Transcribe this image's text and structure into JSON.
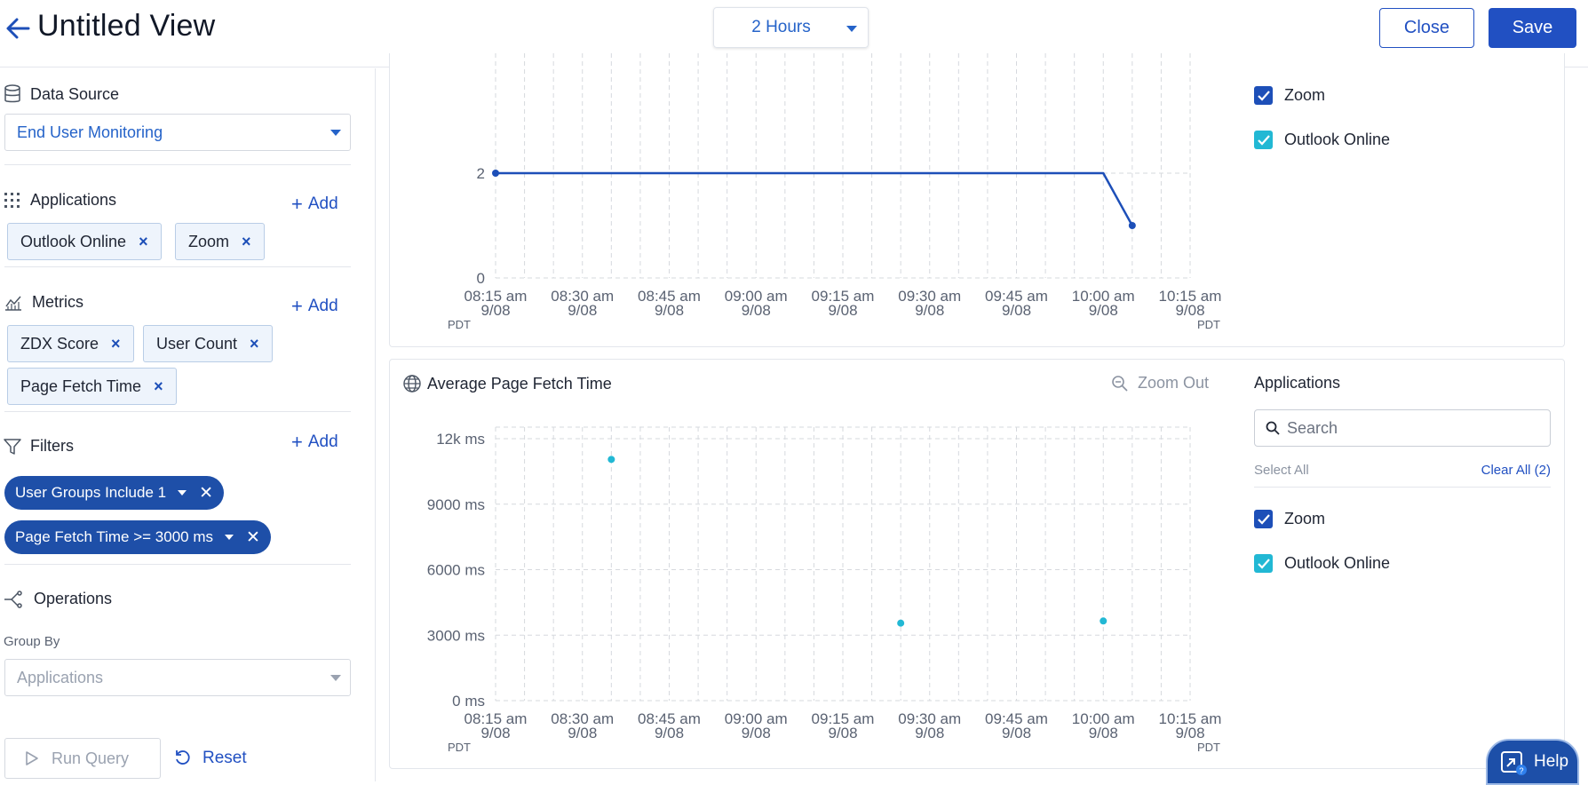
{
  "header": {
    "title": "Untitled View",
    "time_range": "2 Hours",
    "close_label": "Close",
    "save_label": "Save"
  },
  "sidebar": {
    "data_source": {
      "label": "Data Source",
      "value": "End User Monitoring"
    },
    "applications": {
      "label": "Applications",
      "add_label": "Add",
      "chips": [
        "Outlook Online",
        "Zoom"
      ]
    },
    "metrics": {
      "label": "Metrics",
      "add_label": "Add",
      "chips": [
        "ZDX Score",
        "User Count",
        "Page Fetch Time"
      ]
    },
    "filters": {
      "label": "Filters",
      "add_label": "Add",
      "pills": [
        "User Groups Include 1",
        "Page Fetch Time >= 3000 ms"
      ]
    },
    "operations": {
      "label": "Operations",
      "group_by_label": "Group By",
      "group_by_placeholder": "Applications"
    },
    "run_query_label": "Run Query",
    "reset_label": "Reset"
  },
  "panel1": {
    "legend": [
      {
        "name": "Zoom",
        "color": "#1d4fb8",
        "checked": true
      },
      {
        "name": "Outlook Online",
        "color": "#22b8d4",
        "checked": true
      }
    ]
  },
  "panel2": {
    "title": "Average Page Fetch Time",
    "zoom_out_label": "Zoom Out",
    "legend_title": "Applications",
    "search_placeholder": "Search",
    "select_all_label": "Select All",
    "clear_all_label": "Clear All (2)",
    "legend": [
      {
        "name": "Zoom",
        "color": "#1d4fb8",
        "checked": true
      },
      {
        "name": "Outlook Online",
        "color": "#22b8d4",
        "checked": true
      }
    ]
  },
  "help_label": "Help",
  "chart_data": [
    {
      "type": "line",
      "title": "",
      "x_ticks": [
        "08:15 am",
        "08:30 am",
        "08:45 am",
        "09:00 am",
        "09:15 am",
        "09:30 am",
        "09:45 am",
        "10:00 am",
        "10:15 am"
      ],
      "x_tick_dates": [
        "9/08",
        "9/08",
        "9/08",
        "9/08",
        "9/08",
        "9/08",
        "9/08",
        "9/08",
        "9/08"
      ],
      "timezone_label": "PDT",
      "y_ticks": [
        "0",
        "2"
      ],
      "series": [
        {
          "color": "#1d4fb8",
          "x": [
            "08:15",
            "10:00",
            "10:05"
          ],
          "y": [
            2,
            2,
            1
          ]
        }
      ]
    },
    {
      "type": "scatter",
      "title": "Average Page Fetch Time",
      "x_ticks": [
        "08:15 am",
        "08:30 am",
        "08:45 am",
        "09:00 am",
        "09:15 am",
        "09:30 am",
        "09:45 am",
        "10:00 am",
        "10:15 am"
      ],
      "x_tick_dates": [
        "9/08",
        "9/08",
        "9/08",
        "9/08",
        "9/08",
        "9/08",
        "9/08",
        "9/08",
        "9/08"
      ],
      "timezone_label": "PDT",
      "y_ticks": [
        "0 ms",
        "3000 ms",
        "6000 ms",
        "9000 ms",
        "12k ms"
      ],
      "ylim": [
        0,
        12000
      ],
      "series": [
        {
          "color": "#22b8d4",
          "x": [
            "08:35",
            "09:25",
            "10:00"
          ],
          "y": [
            11050,
            3550,
            3650
          ]
        }
      ]
    }
  ]
}
